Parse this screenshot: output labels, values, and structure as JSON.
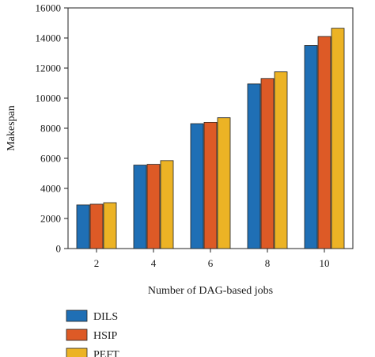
{
  "chart_data": {
    "type": "bar",
    "title": "",
    "xlabel": "Number of DAG-based jobs",
    "ylabel": "Makespan",
    "categories": [
      "2",
      "4",
      "6",
      "8",
      "10"
    ],
    "series": [
      {
        "name": "DILS",
        "color": "#1f6fb5",
        "values": [
          2900,
          5550,
          8300,
          10950,
          13500
        ]
      },
      {
        "name": "HSIP",
        "color": "#dd5a26",
        "values": [
          2950,
          5600,
          8400,
          11300,
          14100
        ]
      },
      {
        "name": "PEFT",
        "color": "#ecb325",
        "values": [
          3050,
          5850,
          8700,
          11750,
          14650
        ]
      }
    ],
    "ylim": [
      0,
      16000
    ],
    "yticks": [
      0,
      2000,
      4000,
      6000,
      8000,
      10000,
      12000,
      14000,
      16000
    ],
    "grid": false,
    "legend": "bottom-left"
  }
}
